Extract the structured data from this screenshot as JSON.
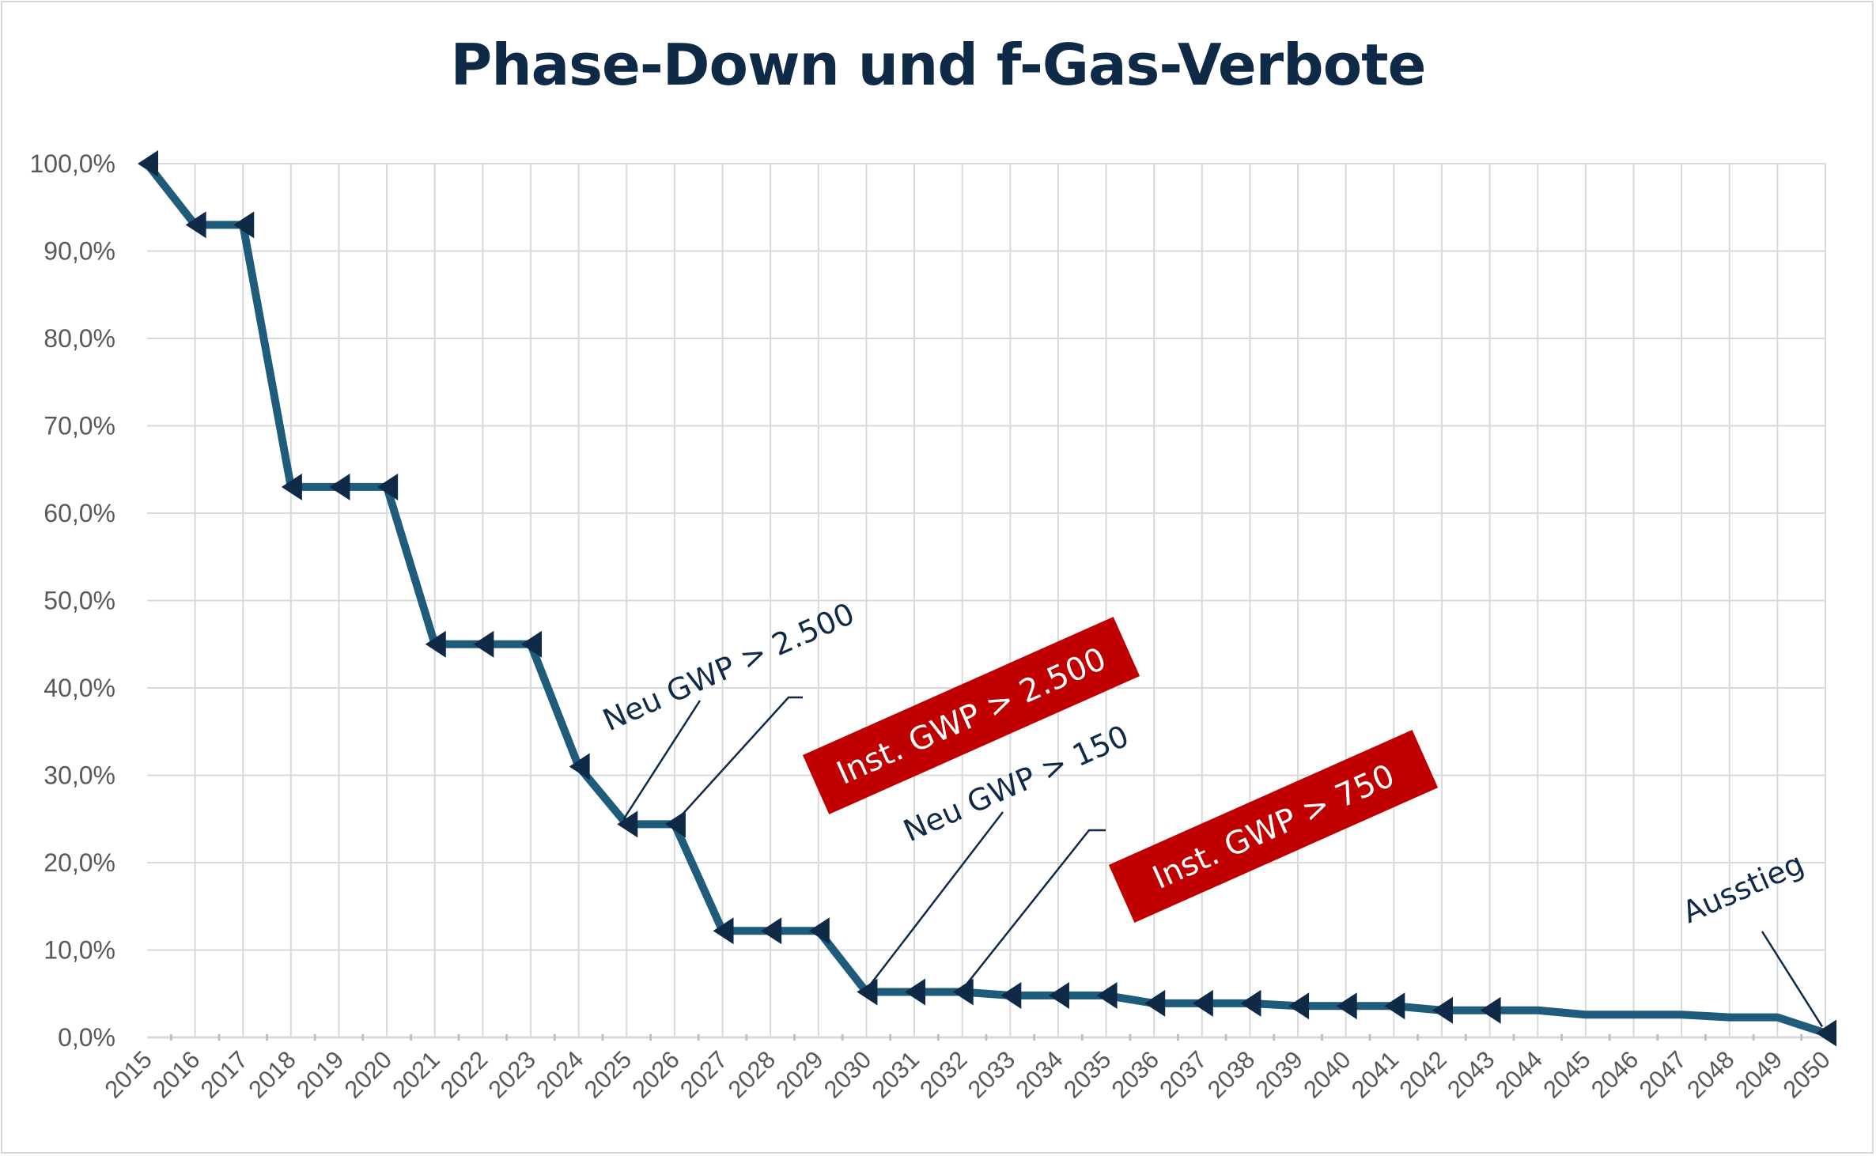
{
  "chart_data": {
    "type": "line",
    "title": "Phase-Down und f-Gas-Verbote",
    "xlabel": "",
    "ylabel": "",
    "ylim": [
      0,
      100
    ],
    "y_ticks": [
      "0,0%",
      "10,0%",
      "20,0%",
      "30,0%",
      "40,0%",
      "50,0%",
      "60,0%",
      "70,0%",
      "80,0%",
      "90,0%",
      "100,0%"
    ],
    "grid": true,
    "series": [
      {
        "color": "#1f5b7a",
        "marker_color": "#0f2a47",
        "x": [
          2015,
          2016,
          2017,
          2018,
          2019,
          2020,
          2021,
          2022,
          2023,
          2024,
          2025,
          2026,
          2027,
          2028,
          2029,
          2030,
          2031,
          2032,
          2033,
          2034,
          2035,
          2036,
          2037,
          2038,
          2039,
          2040,
          2041,
          2042,
          2043,
          2044,
          2045,
          2046,
          2047,
          2048,
          2049,
          2050
        ],
        "values": [
          100,
          93,
          93,
          63,
          63,
          63,
          45,
          45,
          45,
          31,
          24.4,
          24.4,
          12.2,
          12.2,
          12.2,
          5.2,
          5.2,
          5.2,
          4.8,
          4.8,
          4.8,
          3.9,
          3.9,
          3.9,
          3.6,
          3.6,
          3.6,
          3.1,
          3.1,
          3.1,
          2.6,
          2.6,
          2.6,
          2.3,
          2.3,
          0.5
        ],
        "marker_years": [
          2015,
          2016,
          2017,
          2018,
          2019,
          2020,
          2021,
          2022,
          2023,
          2024,
          2025,
          2026,
          2027,
          2028,
          2029,
          2030,
          2031,
          2032,
          2033,
          2034,
          2035,
          2036,
          2037,
          2038,
          2039,
          2040,
          2041,
          2042,
          2043,
          2050
        ]
      }
    ],
    "annotations": [
      {
        "text": "Neu GWP > 2.500",
        "style": "plain",
        "targets": [
          2025,
          2026
        ]
      },
      {
        "text": "Inst. GWP > 2.500",
        "style": "red-box",
        "color": "#c00000"
      },
      {
        "text": "Neu GWP > 150",
        "style": "plain",
        "targets": [
          2030,
          2032
        ]
      },
      {
        "text": "Inst. GWP > 750",
        "style": "red-box",
        "color": "#c00000"
      },
      {
        "text": "Ausstieg",
        "style": "plain",
        "targets": [
          2050
        ]
      }
    ]
  }
}
